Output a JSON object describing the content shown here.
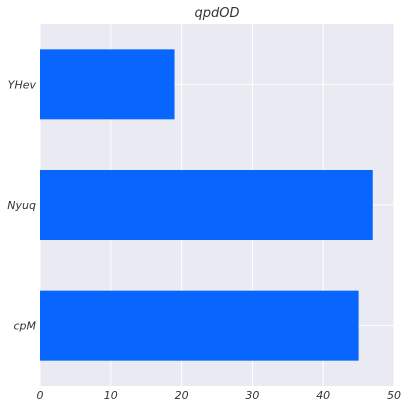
{
  "chart_data": {
    "type": "bar",
    "orientation": "horizontal",
    "title": "qpdOD",
    "xlabel": "",
    "ylabel": "",
    "categories": [
      "YHev",
      "Nyuq",
      "cpM"
    ],
    "values": [
      19,
      47,
      45
    ],
    "xlim": [
      0,
      50
    ],
    "xticks": [
      0,
      10,
      20,
      30,
      40,
      50
    ],
    "grid": true,
    "bar_color": "#0866ff",
    "background_color": "#eaeaf2",
    "grid_color": "#ffffff"
  }
}
